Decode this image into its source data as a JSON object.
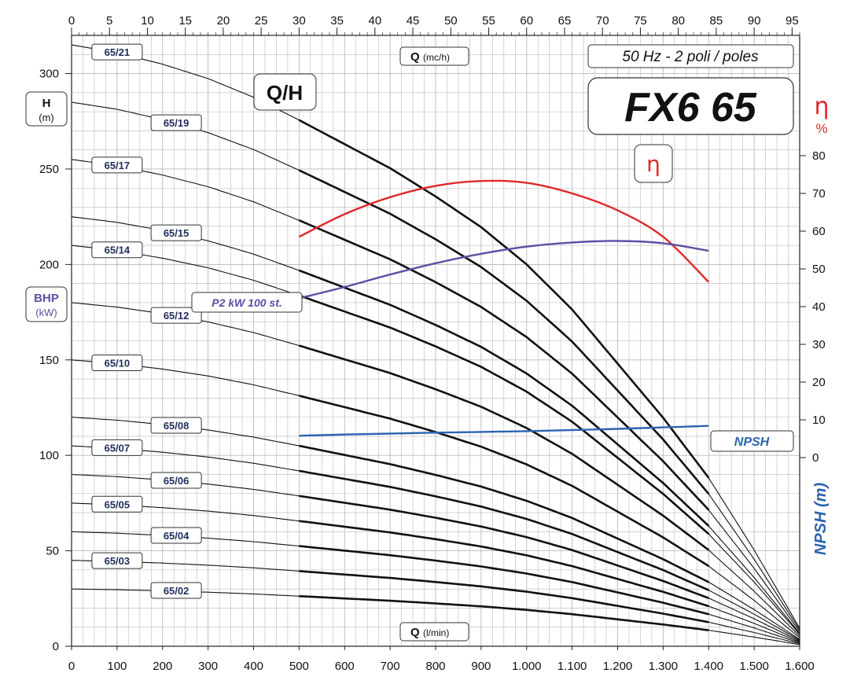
{
  "chart_data": {
    "type": "line",
    "title": "FX6 65",
    "subtitle": "50 Hz - 2 poli / poles",
    "curve_type_label": "Q/H",
    "axes": {
      "top": {
        "label": "Q",
        "unit": "(mc/h)",
        "range": [
          0,
          96
        ],
        "ticks": [
          "0",
          "5",
          "10",
          "15",
          "20",
          "25",
          "30",
          "35",
          "40",
          "45",
          "50",
          "55",
          "60",
          "65",
          "70",
          "75",
          "80",
          "85",
          "90",
          "95"
        ]
      },
      "bottom": {
        "label": "Q",
        "unit": "(l/min)",
        "range": [
          0,
          1600
        ],
        "ticks": [
          "0",
          "100",
          "200",
          "300",
          "400",
          "500",
          "600",
          "700",
          "800",
          "900",
          "1.000",
          "1.100",
          "1.200",
          "1.300",
          "1.400",
          "1.500",
          "1.600"
        ]
      },
      "left": {
        "label": "H",
        "unit": "(m)",
        "range": [
          0,
          320
        ],
        "ticks": [
          "0",
          "50",
          "100",
          "150",
          "200",
          "250",
          "300"
        ]
      },
      "left_power": {
        "label": "BHP",
        "unit": "(kW)"
      },
      "right_eff": {
        "label": "η",
        "unit": "%",
        "range": [
          0,
          80
        ],
        "ticks": [
          "0",
          "10",
          "20",
          "30",
          "40",
          "50",
          "60",
          "70",
          "80"
        ]
      },
      "right_npsh": {
        "label": "NPSH (m)"
      }
    },
    "grid": true,
    "head_series": [
      {
        "name": "65/21",
        "h0": 315
      },
      {
        "name": "65/19",
        "h0": 285
      },
      {
        "name": "65/17",
        "h0": 255
      },
      {
        "name": "65/15",
        "h0": 225
      },
      {
        "name": "65/14",
        "h0": 210
      },
      {
        "name": "65/12",
        "h0": 180
      },
      {
        "name": "65/10",
        "h0": 150
      },
      {
        "name": "65/08",
        "h0": 120
      },
      {
        "name": "65/07",
        "h0": 105
      },
      {
        "name": "65/06",
        "h0": 90
      },
      {
        "name": "65/05",
        "h0": 75
      },
      {
        "name": "65/04",
        "h0": 60
      },
      {
        "name": "65/03",
        "h0": 45
      },
      {
        "name": "65/02",
        "h0": 30
      }
    ],
    "head_curve_shape": {
      "q": [
        0,
        100,
        200,
        300,
        400,
        500,
        600,
        700,
        800,
        900,
        1000,
        1100,
        1200,
        1300,
        1400,
        1500,
        1600
      ],
      "relative_head": [
        1.0,
        0.987,
        0.968,
        0.944,
        0.913,
        0.875,
        0.835,
        0.795,
        0.748,
        0.697,
        0.635,
        0.56,
        0.47,
        0.38,
        0.28,
        0.16,
        0.03
      ],
      "bold_from_q": 500,
      "bold_to_q": 1400
    },
    "efficiency": {
      "name": "η",
      "q": [
        500,
        600,
        700,
        800,
        900,
        1000,
        1100,
        1200,
        1300,
        1400
      ],
      "eff": [
        58.5,
        64.5,
        69.0,
        72.0,
        73.3,
        72.8,
        70.0,
        65.5,
        58.5,
        46.5
      ]
    },
    "power": {
      "name": "P2 kW 100 st.",
      "q": [
        500,
        600,
        700,
        800,
        900,
        1000,
        1100,
        1200,
        1300,
        1400
      ],
      "eff_axis": [
        42.2,
        45.2,
        48.5,
        51.5,
        54.0,
        55.9,
        57.0,
        57.4,
        56.8,
        54.8
      ]
    },
    "npsh": {
      "name": "NPSH",
      "q": [
        500,
        600,
        700,
        800,
        900,
        1000,
        1100,
        1200,
        1300,
        1400
      ],
      "eff_axis": [
        5.8,
        6.1,
        6.35,
        6.6,
        6.8,
        7.0,
        7.3,
        7.6,
        8.0,
        8.4
      ]
    },
    "colors": {
      "head": "#111111",
      "efficiency": "#e02828",
      "power": "#5b4fa5",
      "npsh": "#2c64b0",
      "grid": "#b9b9b9",
      "label_text": "#1f2d5a"
    }
  }
}
